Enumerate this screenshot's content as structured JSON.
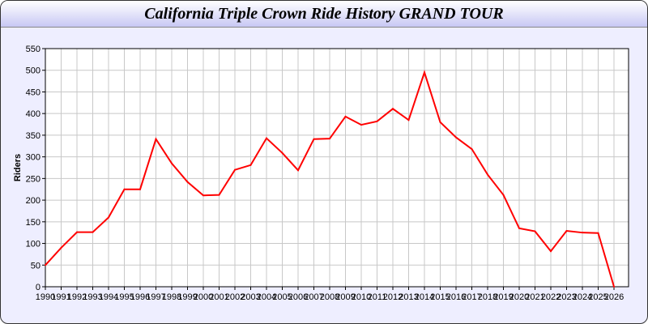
{
  "chart_data": {
    "type": "line",
    "title": "California Triple Crown Ride History GRAND TOUR",
    "xlabel": "",
    "ylabel": "Riders",
    "ylim": [
      0,
      550
    ],
    "yticks": [
      0,
      50,
      100,
      150,
      200,
      250,
      300,
      350,
      400,
      450,
      500,
      550
    ],
    "grid": true,
    "line_color": "#ff0000",
    "x": [
      "1990",
      "1991",
      "1992",
      "1993",
      "1994",
      "1995",
      "1996",
      "1997",
      "1998",
      "1999",
      "2000",
      "2001",
      "2002",
      "2003",
      "2004",
      "2005",
      "2006",
      "2007",
      "2008",
      "2009",
      "2010",
      "2011",
      "2012",
      "2013",
      "2014",
      "2015",
      "2016",
      "2017",
      "2018",
      "2019",
      "2020",
      "2021",
      "2022",
      "2023",
      "2024",
      "2025",
      "2026"
    ],
    "series": [
      {
        "values": [
          50,
          90,
          126,
          126,
          160,
          225,
          225,
          341,
          285,
          242,
          211,
          212,
          270,
          281,
          343,
          309,
          269,
          341,
          342,
          393,
          374,
          382,
          411,
          385,
          495,
          380,
          345,
          318,
          259,
          212,
          135,
          128,
          82,
          129,
          125,
          124,
          0
        ]
      }
    ]
  }
}
